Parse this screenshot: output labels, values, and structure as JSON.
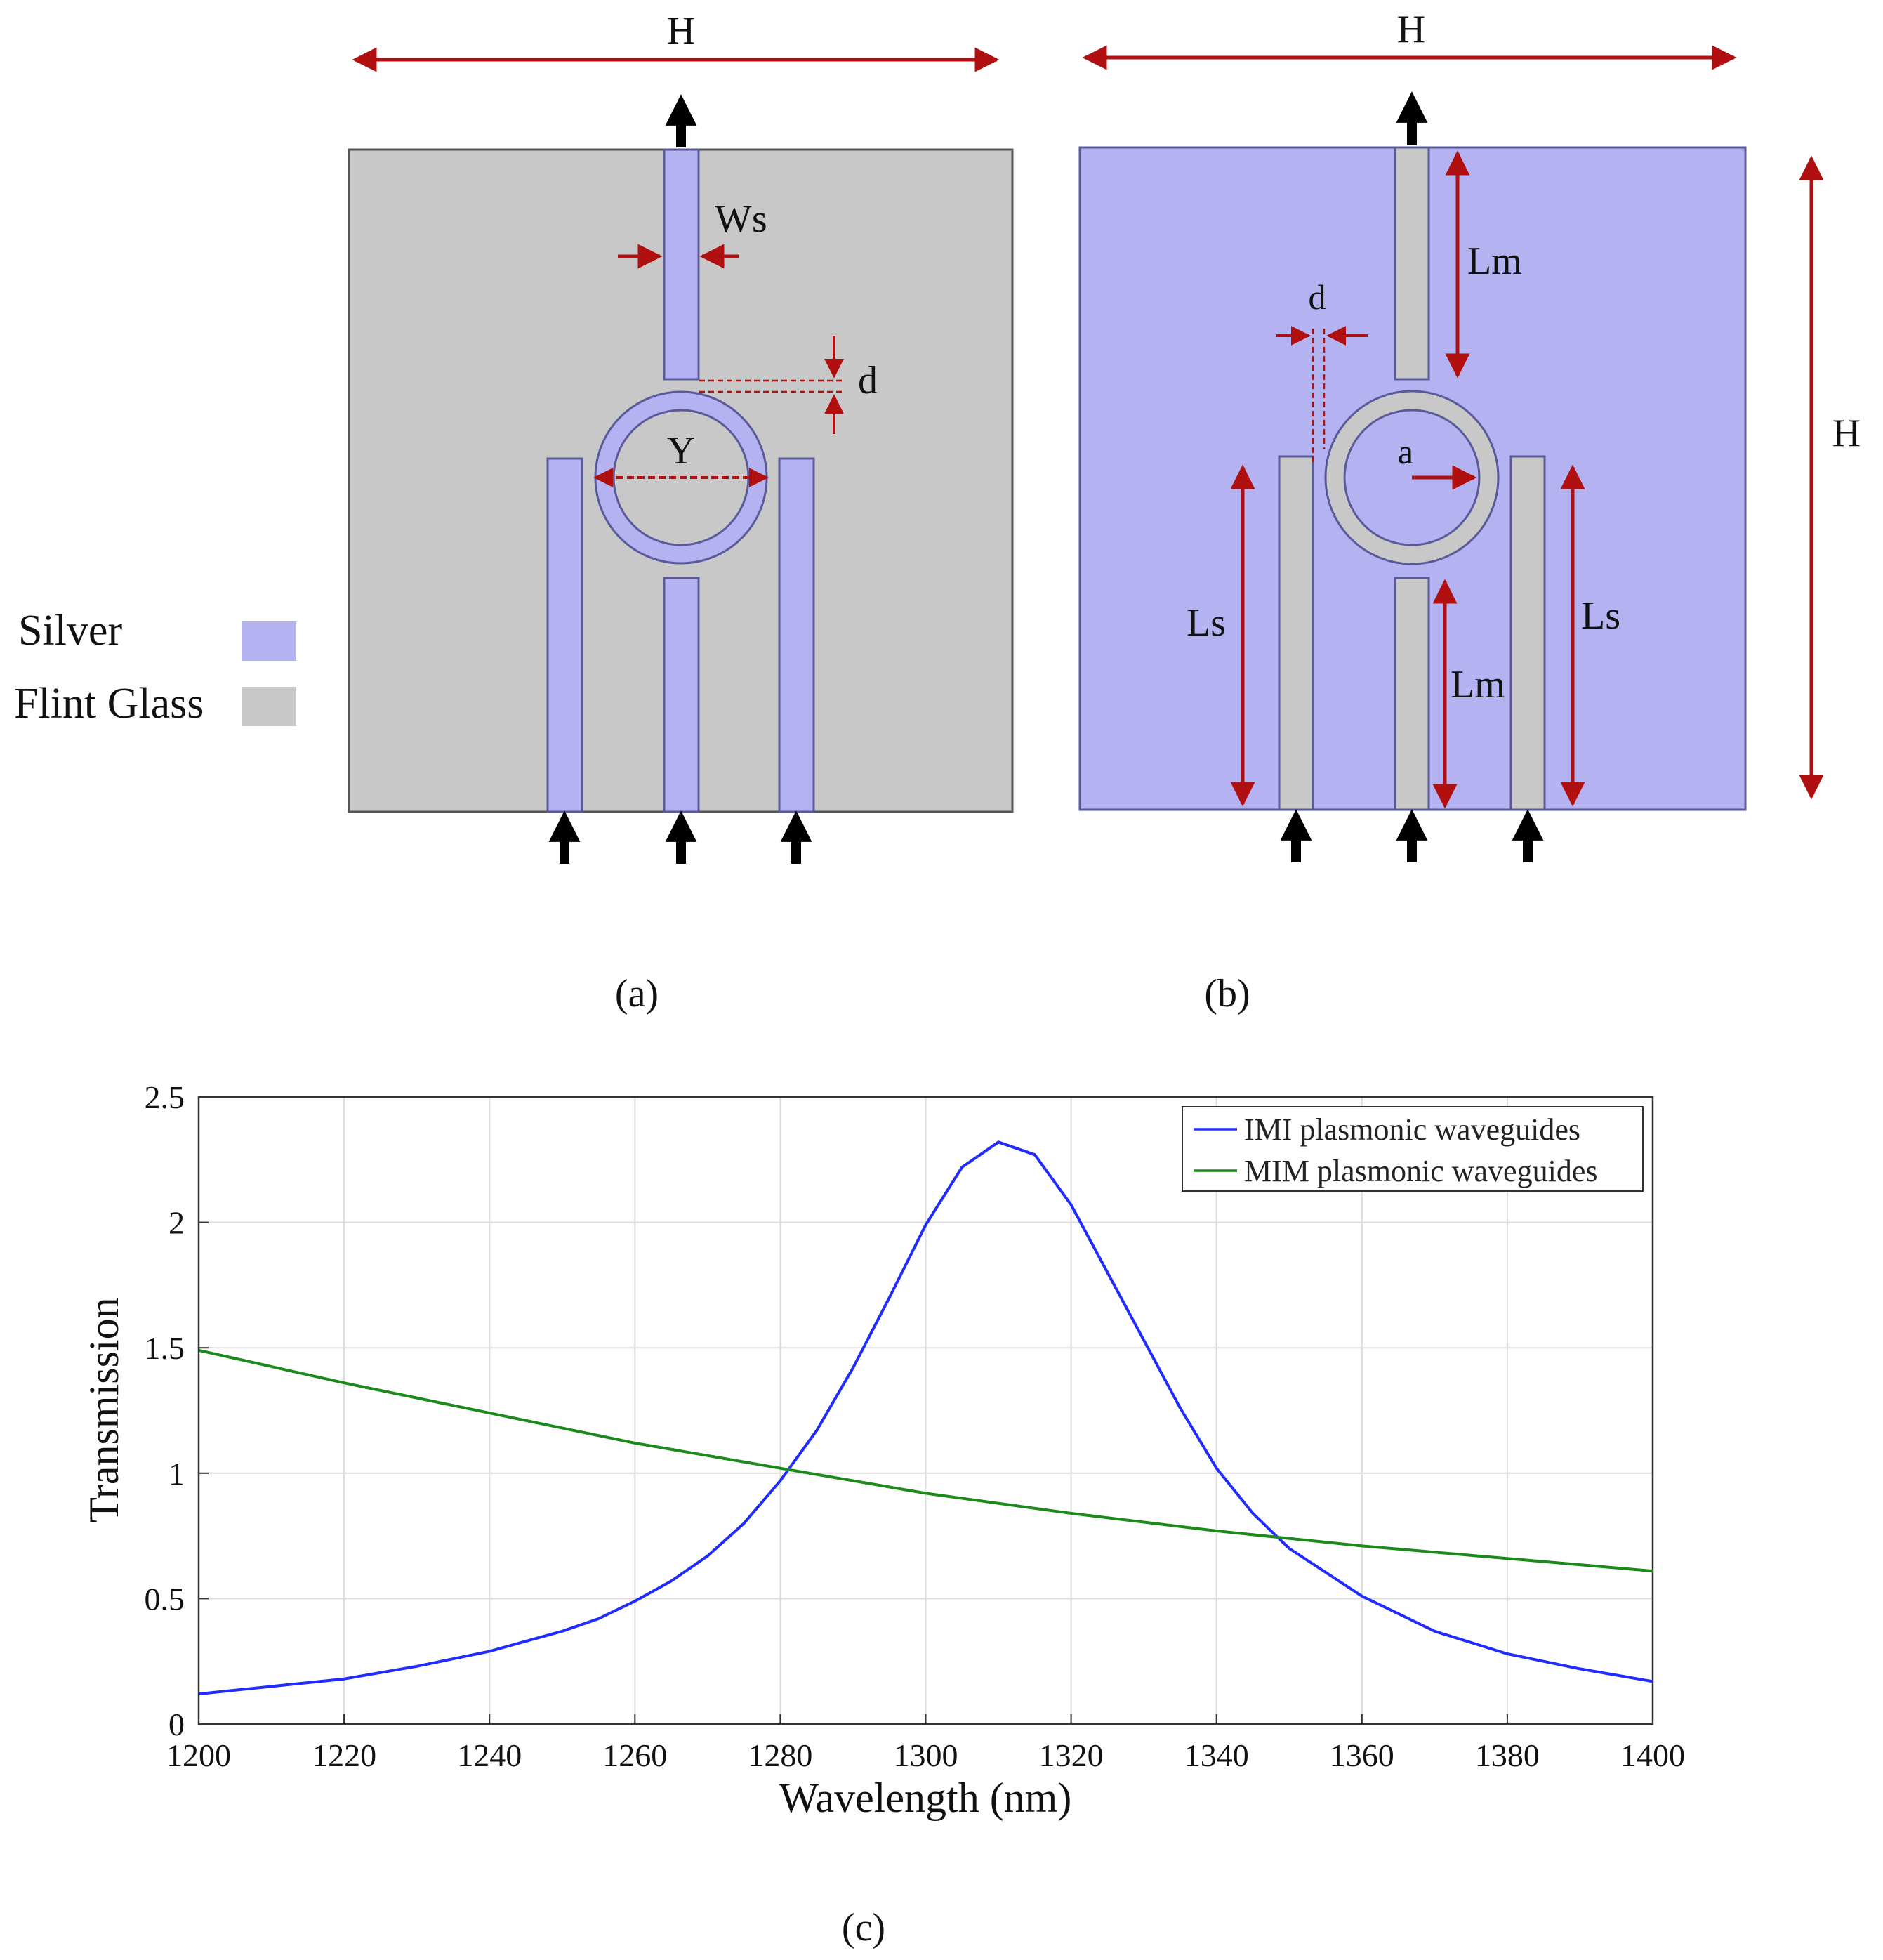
{
  "legend_materials": {
    "silver_label": "Silver",
    "flint_label": "Flint Glass",
    "silver_color": "#b4b2f0",
    "flint_color": "#c8c8c8"
  },
  "panel_a": {
    "caption": "(a)",
    "width_label": "H",
    "stub_width_label": "Ws",
    "gap_label": "d",
    "ring_label": "Y"
  },
  "panel_b": {
    "caption": "(b)",
    "width_label": "H",
    "height_label": "H",
    "gap_label": "d",
    "radius_label": "a",
    "upper_stub_label": "Lm",
    "lower_stub_label": "Lm",
    "left_stub_label": "Ls",
    "right_stub_label": "Ls"
  },
  "panel_c": {
    "caption": "(c)"
  },
  "colors": {
    "dimension": "#b01010",
    "arrow": "#000000",
    "outline": "#5a5a9a",
    "imi_line": "#1f2bff",
    "mim_line": "#1a8a1a"
  },
  "chart_data": {
    "type": "line",
    "xlabel": "Wavelength (nm)",
    "ylabel": "Transmission",
    "xlim": [
      1200,
      1400
    ],
    "ylim": [
      0,
      2.5
    ],
    "xticks": [
      "1200",
      "1220",
      "1240",
      "1260",
      "1280",
      "1300",
      "1320",
      "1340",
      "1360",
      "1380",
      "1400"
    ],
    "yticks": [
      "0",
      "0.5",
      "1",
      "1.5",
      "2",
      "2.5"
    ],
    "grid": true,
    "legend_position": "top-right",
    "series": [
      {
        "name": "IMI plasmonic waveguides",
        "color": "#1f2bff",
        "x": [
          1200,
          1210,
          1220,
          1230,
          1240,
          1250,
          1255,
          1260,
          1265,
          1270,
          1275,
          1280,
          1285,
          1290,
          1295,
          1300,
          1305,
          1310,
          1315,
          1320,
          1325,
          1330,
          1335,
          1340,
          1345,
          1350,
          1360,
          1370,
          1380,
          1390,
          1400
        ],
        "y": [
          0.12,
          0.15,
          0.18,
          0.23,
          0.29,
          0.37,
          0.42,
          0.49,
          0.57,
          0.67,
          0.8,
          0.97,
          1.17,
          1.42,
          1.7,
          1.99,
          2.22,
          2.32,
          2.27,
          2.07,
          1.8,
          1.53,
          1.26,
          1.02,
          0.84,
          0.7,
          0.51,
          0.37,
          0.28,
          0.22,
          0.17
        ]
      },
      {
        "name": "MIM plasmonic waveguides",
        "color": "#1a8a1a",
        "x": [
          1200,
          1220,
          1240,
          1260,
          1280,
          1300,
          1320,
          1340,
          1360,
          1380,
          1400
        ],
        "y": [
          1.49,
          1.36,
          1.24,
          1.12,
          1.02,
          0.92,
          0.84,
          0.77,
          0.71,
          0.66,
          0.61
        ]
      }
    ]
  }
}
